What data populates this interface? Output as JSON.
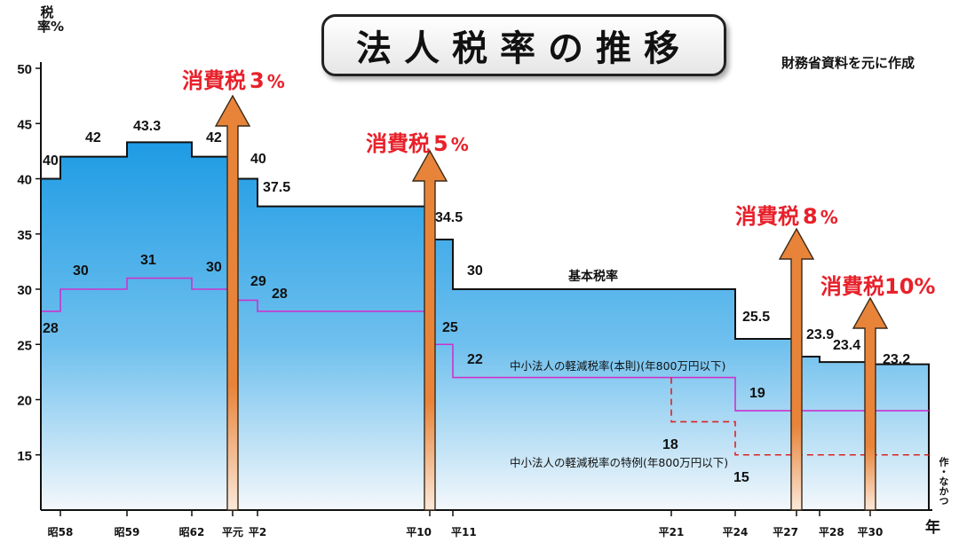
{
  "title": "法人税率の推移",
  "source_note": "財務省資料を元に作成",
  "credit": "作・なかつ",
  "chart_data": {
    "type": "line",
    "title": "法人税率の推移",
    "ylabel": "税率%",
    "xlabel": "年",
    "ylim": [
      10,
      50
    ],
    "yticks": [
      15,
      20,
      25,
      30,
      35,
      40,
      45,
      50
    ],
    "grid": false,
    "x_ticks": [
      "昭58",
      "昭59",
      "昭62",
      "平元",
      "平2",
      "平10",
      "平11",
      "平21",
      "平24",
      "平27",
      "平28",
      "平30"
    ],
    "series": [
      {
        "name": "基本税率",
        "steps": [
          {
            "from": "(昭58以前)",
            "value": 40
          },
          {
            "from": "昭58",
            "value": 42
          },
          {
            "from": "昭59",
            "value": 43.3
          },
          {
            "from": "昭62",
            "value": 42
          },
          {
            "from": "平元",
            "value": 40
          },
          {
            "from": "平2",
            "value": 37.5
          },
          {
            "from": "平10",
            "value": 34.5
          },
          {
            "from": "平11",
            "value": 30
          },
          {
            "from": "平24",
            "value": 25.5
          },
          {
            "from": "平27",
            "value": 23.9
          },
          {
            "from": "平28",
            "value": 23.4
          },
          {
            "from": "平30",
            "value": 23.2
          }
        ]
      },
      {
        "name": "中小法人の軽減税率(本則)(年800万円以下)",
        "steps": [
          {
            "from": "(昭58以前)",
            "value": 28
          },
          {
            "from": "昭58",
            "value": 30
          },
          {
            "from": "昭59",
            "value": 31
          },
          {
            "from": "昭62",
            "value": 30
          },
          {
            "from": "平元",
            "value": 29
          },
          {
            "from": "平2",
            "value": 28
          },
          {
            "from": "平10",
            "value": 25
          },
          {
            "from": "平11",
            "value": 22
          },
          {
            "from": "平24",
            "value": 19
          }
        ]
      },
      {
        "name": "中小法人の軽減税率の特例(年800万円以下)",
        "style": "dashed",
        "steps": [
          {
            "from": "平21",
            "value": 18
          },
          {
            "from": "平24",
            "value": 15
          }
        ]
      }
    ],
    "annotations": [
      {
        "x": "平元",
        "label_parts": [
          "消費税",
          "3",
          "%"
        ]
      },
      {
        "x": "平10",
        "label_parts": [
          "消費税",
          "5",
          "%"
        ]
      },
      {
        "x": "平27",
        "label_parts": [
          "消費税",
          "8",
          "%"
        ]
      },
      {
        "x": "平30",
        "label_parts": [
          "消費税",
          "10%",
          ""
        ]
      }
    ],
    "colors": {
      "area_top": "#1e9be4",
      "area_bottom": "#f4f8fb",
      "base_line": "#111111",
      "reduced_line": "#cc33cc",
      "special_line": "#e02020",
      "arrow_fill": "#e8843a",
      "annotation_text": "#e8202a"
    }
  }
}
